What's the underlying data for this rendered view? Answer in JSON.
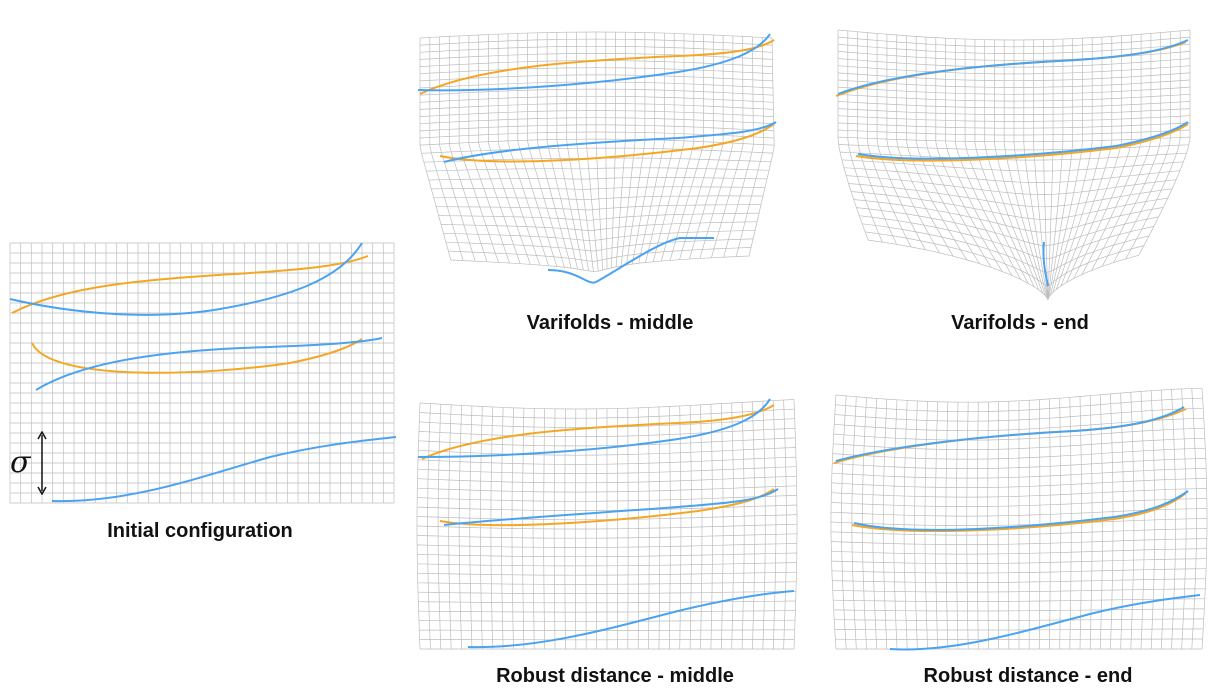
{
  "figure": {
    "colors": {
      "grid": "#bdbdbd",
      "template_curve": "#f5a623",
      "target_curve": "#4aa3f0",
      "text": "#111111"
    },
    "panels": [
      {
        "id": "initial",
        "caption": "Initial configuration"
      },
      {
        "id": "varifolds-middle",
        "caption": "Varifolds - middle"
      },
      {
        "id": "varifolds-end",
        "caption": "Varifolds - end"
      },
      {
        "id": "robust-middle",
        "caption": "Robust distance - middle"
      },
      {
        "id": "robust-end",
        "caption": "Robust distance - end"
      }
    ],
    "scale_label": "σ"
  }
}
